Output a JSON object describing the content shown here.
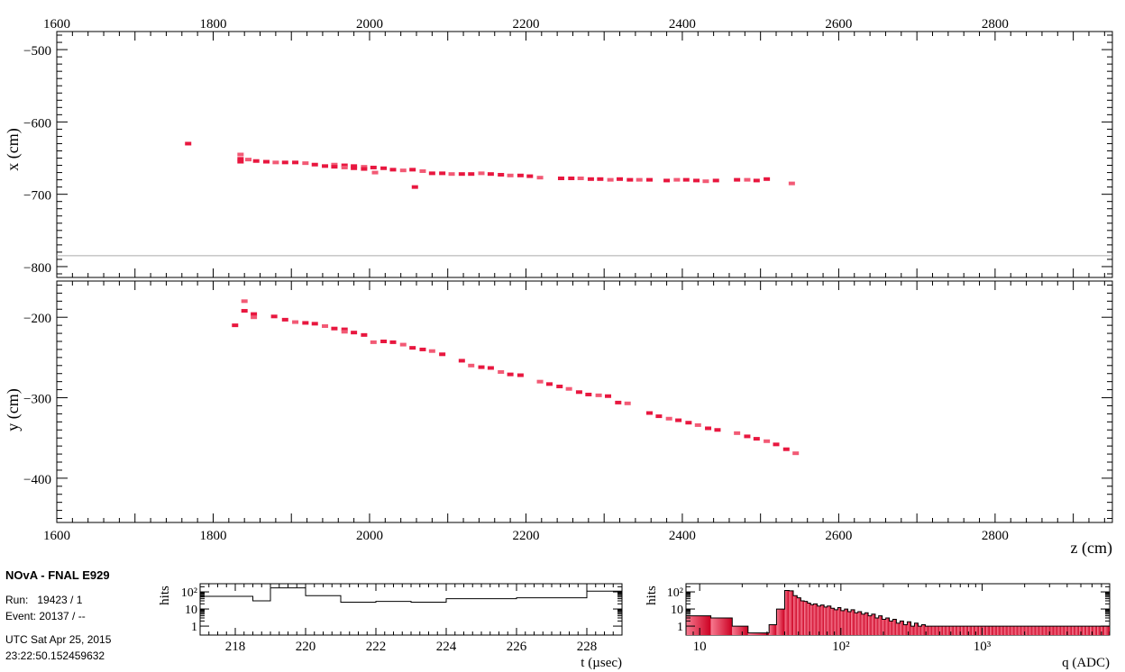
{
  "info": {
    "title": "NOvA - FNAL E929",
    "run_line": "Run:   19423 / 1",
    "event_line": "Event: 20137 / --",
    "date_line": "UTC Sat Apr 25, 2015",
    "time_line": "23:22:50.152459632"
  },
  "colors": {
    "hit": "#e8173f",
    "hit_light": "#f25a75",
    "axis": "#000000",
    "detector_line": "#aaaaaa",
    "q_gradient_start": "#f77a90",
    "q_gradient_end": "#cc0022"
  },
  "chart_data": [
    {
      "type": "scatter",
      "panel": "top-view",
      "xlabel": "",
      "ylabel": "x (cm)",
      "xlim": [
        1600,
        2950
      ],
      "ylim": [
        -815,
        -475
      ],
      "x_ticks": [
        1600,
        1800,
        2000,
        2200,
        2400,
        2600,
        2800
      ],
      "x_tick_labels_top": [
        "1600",
        "1800",
        "2000",
        "2200",
        "2400",
        "2600",
        "2800"
      ],
      "y_ticks": [
        -500,
        -600,
        -700,
        -800
      ],
      "y_tick_labels": [
        "−500",
        "−600",
        "−700",
        "−800"
      ],
      "detector_edge_x": -785,
      "points": [
        [
          1768,
          -630
        ],
        [
          1835,
          -645
        ],
        [
          1835,
          -651
        ],
        [
          1835,
          -655
        ],
        [
          1845,
          -652
        ],
        [
          1855,
          -654
        ],
        [
          1868,
          -655
        ],
        [
          1880,
          -656
        ],
        [
          1892,
          -656
        ],
        [
          1905,
          -656
        ],
        [
          1918,
          -657
        ],
        [
          1930,
          -659
        ],
        [
          1943,
          -661
        ],
        [
          1955,
          -659
        ],
        [
          1955,
          -662
        ],
        [
          1968,
          -660
        ],
        [
          1968,
          -663
        ],
        [
          1980,
          -661
        ],
        [
          1980,
          -664
        ],
        [
          1993,
          -662
        ],
        [
          1993,
          -665
        ],
        [
          2005,
          -663
        ],
        [
          2007,
          -670
        ],
        [
          2018,
          -664
        ],
        [
          2030,
          -666
        ],
        [
          2043,
          -667
        ],
        [
          2055,
          -666
        ],
        [
          2058,
          -690
        ],
        [
          2068,
          -668
        ],
        [
          2080,
          -671
        ],
        [
          2093,
          -671
        ],
        [
          2105,
          -672
        ],
        [
          2118,
          -672
        ],
        [
          2130,
          -672
        ],
        [
          2143,
          -671
        ],
        [
          2155,
          -672
        ],
        [
          2168,
          -673
        ],
        [
          2180,
          -674
        ],
        [
          2193,
          -674
        ],
        [
          2205,
          -675
        ],
        [
          2218,
          -677
        ],
        [
          2245,
          -678
        ],
        [
          2258,
          -678
        ],
        [
          2270,
          -678
        ],
        [
          2283,
          -679
        ],
        [
          2295,
          -679
        ],
        [
          2308,
          -680
        ],
        [
          2320,
          -679
        ],
        [
          2333,
          -680
        ],
        [
          2345,
          -680
        ],
        [
          2358,
          -680
        ],
        [
          2380,
          -681
        ],
        [
          2393,
          -680
        ],
        [
          2405,
          -680
        ],
        [
          2418,
          -681
        ],
        [
          2430,
          -682
        ],
        [
          2443,
          -681
        ],
        [
          2470,
          -680
        ],
        [
          2483,
          -680
        ],
        [
          2495,
          -681
        ],
        [
          2508,
          -679
        ],
        [
          2540,
          -685
        ]
      ]
    },
    {
      "type": "scatter",
      "panel": "side-view",
      "xlabel": "z (cm)",
      "ylabel": "y (cm)",
      "xlim": [
        1600,
        2950
      ],
      "ylim": [
        -455,
        -155
      ],
      "x_ticks": [
        1600,
        1800,
        2000,
        2200,
        2400,
        2600,
        2800
      ],
      "x_tick_labels": [
        "1600",
        "1800",
        "2000",
        "2200",
        "2400",
        "2600",
        "2800"
      ],
      "y_ticks": [
        -200,
        -300,
        -400
      ],
      "y_tick_labels": [
        "−200",
        "−300",
        "−400"
      ],
      "points": [
        [
          1828,
          -210
        ],
        [
          1840,
          -180
        ],
        [
          1840,
          -192
        ],
        [
          1852,
          -196
        ],
        [
          1852,
          -200
        ],
        [
          1878,
          -199
        ],
        [
          1892,
          -203
        ],
        [
          1905,
          -206
        ],
        [
          1918,
          -207
        ],
        [
          1930,
          -208
        ],
        [
          1943,
          -211
        ],
        [
          1955,
          -214
        ],
        [
          1968,
          -215
        ],
        [
          1968,
          -218
        ],
        [
          1980,
          -219
        ],
        [
          1993,
          -222
        ],
        [
          2005,
          -231
        ],
        [
          2018,
          -230
        ],
        [
          2030,
          -231
        ],
        [
          2043,
          -234
        ],
        [
          2055,
          -238
        ],
        [
          2068,
          -240
        ],
        [
          2080,
          -242
        ],
        [
          2093,
          -246
        ],
        [
          2118,
          -254
        ],
        [
          2130,
          -260
        ],
        [
          2143,
          -262
        ],
        [
          2155,
          -263
        ],
        [
          2168,
          -268
        ],
        [
          2180,
          -271
        ],
        [
          2193,
          -272
        ],
        [
          2218,
          -280
        ],
        [
          2230,
          -283
        ],
        [
          2243,
          -286
        ],
        [
          2255,
          -289
        ],
        [
          2268,
          -293
        ],
        [
          2280,
          -296
        ],
        [
          2293,
          -297
        ],
        [
          2305,
          -298
        ],
        [
          2318,
          -306
        ],
        [
          2330,
          -307
        ],
        [
          2358,
          -319
        ],
        [
          2370,
          -323
        ],
        [
          2383,
          -326
        ],
        [
          2395,
          -328
        ],
        [
          2408,
          -331
        ],
        [
          2420,
          -334
        ],
        [
          2433,
          -338
        ],
        [
          2445,
          -340
        ],
        [
          2470,
          -344
        ],
        [
          2483,
          -348
        ],
        [
          2495,
          -351
        ],
        [
          2508,
          -354
        ],
        [
          2520,
          -358
        ],
        [
          2533,
          -364
        ],
        [
          2545,
          -369
        ]
      ]
    },
    {
      "type": "histogram",
      "panel": "time",
      "xlabel": "t (µsec)",
      "ylabel": "hits",
      "log_y": true,
      "ylim": [
        0.3,
        300
      ],
      "xlim": [
        217,
        229
      ],
      "x_ticks": [
        218,
        220,
        222,
        224,
        226,
        228
      ],
      "x_tick_labels": [
        "218",
        "220",
        "222",
        "224",
        "226",
        "228"
      ],
      "y_tick_labels": [
        "1",
        "10",
        "10²"
      ],
      "y_tick_values": [
        1,
        10,
        100
      ],
      "bins": [
        [
          217,
          218.5,
          55
        ],
        [
          218.5,
          219,
          30
        ],
        [
          219,
          220,
          170
        ],
        [
          220,
          221,
          60
        ],
        [
          221,
          222,
          25
        ],
        [
          222,
          223,
          28
        ],
        [
          223,
          224,
          25
        ],
        [
          224,
          226,
          40
        ],
        [
          226,
          228,
          45
        ],
        [
          228,
          229,
          110
        ]
      ]
    },
    {
      "type": "histogram",
      "panel": "charge",
      "xlabel": "q (ADC)",
      "ylabel": "hits",
      "log_x": true,
      "log_y": true,
      "ylim": [
        0.3,
        300
      ],
      "xlim": [
        8,
        8000
      ],
      "x_ticks": [
        10,
        100,
        1000
      ],
      "x_tick_labels": [
        "10",
        "10²",
        "10³"
      ],
      "y_tick_labels": [
        "1",
        "10",
        "10²"
      ],
      "y_tick_values": [
        1,
        10,
        100
      ],
      "bins": [
        [
          8,
          12,
          4
        ],
        [
          12,
          17,
          3
        ],
        [
          17,
          22,
          1
        ],
        [
          22,
          31,
          0.4
        ],
        [
          31,
          35,
          1.2
        ],
        [
          35,
          40,
          10
        ],
        [
          40,
          43,
          120
        ],
        [
          43,
          46,
          115
        ],
        [
          46,
          49,
          60
        ],
        [
          49,
          52,
          45
        ],
        [
          52,
          55,
          30
        ],
        [
          55,
          58,
          28
        ],
        [
          58,
          61,
          22
        ],
        [
          61,
          64,
          18
        ],
        [
          64,
          68,
          20
        ],
        [
          68,
          72,
          15
        ],
        [
          72,
          76,
          17
        ],
        [
          76,
          80,
          13
        ],
        [
          80,
          85,
          15
        ],
        [
          85,
          90,
          11
        ],
        [
          90,
          95,
          9
        ],
        [
          95,
          100,
          12
        ],
        [
          100,
          106,
          8
        ],
        [
          106,
          112,
          10
        ],
        [
          112,
          118,
          7
        ],
        [
          118,
          125,
          9
        ],
        [
          125,
          132,
          6
        ],
        [
          132,
          140,
          7
        ],
        [
          140,
          148,
          5
        ],
        [
          148,
          156,
          6
        ],
        [
          156,
          165,
          4
        ],
        [
          165,
          175,
          5
        ],
        [
          175,
          185,
          3
        ],
        [
          185,
          196,
          4
        ],
        [
          196,
          208,
          2.5
        ],
        [
          208,
          220,
          3
        ],
        [
          220,
          233,
          2
        ],
        [
          233,
          247,
          2.5
        ],
        [
          247,
          262,
          1.5
        ],
        [
          262,
          278,
          2
        ],
        [
          278,
          295,
          1.2
        ],
        [
          295,
          313,
          1.8
        ],
        [
          313,
          332,
          1
        ],
        [
          332,
          352,
          1.5
        ],
        [
          352,
          373,
          1
        ],
        [
          373,
          396,
          1.2
        ],
        [
          396,
          420,
          1
        ],
        [
          420,
          445,
          1
        ],
        [
          445,
          472,
          1
        ],
        [
          472,
          500,
          1
        ],
        [
          500,
          530,
          1
        ],
        [
          530,
          562,
          1
        ],
        [
          562,
          596,
          1
        ],
        [
          596,
          632,
          1
        ],
        [
          632,
          670,
          1
        ],
        [
          670,
          710,
          1
        ],
        [
          710,
          753,
          1
        ],
        [
          753,
          798,
          1
        ],
        [
          798,
          846,
          1
        ],
        [
          846,
          897,
          1
        ],
        [
          897,
          951,
          1
        ],
        [
          951,
          1008,
          1
        ],
        [
          1008,
          1069,
          1
        ],
        [
          1069,
          1133,
          1
        ],
        [
          1133,
          1201,
          1
        ],
        [
          1201,
          1273,
          1
        ],
        [
          1273,
          1350,
          1
        ],
        [
          1350,
          1431,
          1
        ],
        [
          1431,
          1517,
          1
        ],
        [
          1517,
          1608,
          1
        ],
        [
          1608,
          1705,
          1
        ],
        [
          1705,
          1807,
          1
        ],
        [
          1807,
          1916,
          1
        ],
        [
          1916,
          2031,
          1
        ],
        [
          2031,
          2153,
          1
        ],
        [
          2153,
          2282,
          1
        ],
        [
          2282,
          2419,
          1
        ],
        [
          2419,
          2565,
          1
        ],
        [
          2565,
          2719,
          1
        ],
        [
          2719,
          2882,
          1
        ],
        [
          2882,
          3055,
          1
        ],
        [
          3055,
          3239,
          1
        ],
        [
          3239,
          3433,
          1
        ],
        [
          3433,
          3640,
          1
        ],
        [
          3640,
          3858,
          1
        ],
        [
          3858,
          4090,
          1
        ],
        [
          4090,
          4336,
          1
        ],
        [
          4336,
          4596,
          1
        ],
        [
          4596,
          4872,
          1
        ],
        [
          4872,
          5165,
          1
        ],
        [
          5165,
          5475,
          1
        ],
        [
          5475,
          5804,
          1
        ],
        [
          5804,
          6153,
          1
        ],
        [
          6153,
          6522,
          1
        ],
        [
          6522,
          6914,
          1
        ],
        [
          6914,
          7329,
          1
        ],
        [
          7329,
          8000,
          1
        ]
      ]
    }
  ]
}
